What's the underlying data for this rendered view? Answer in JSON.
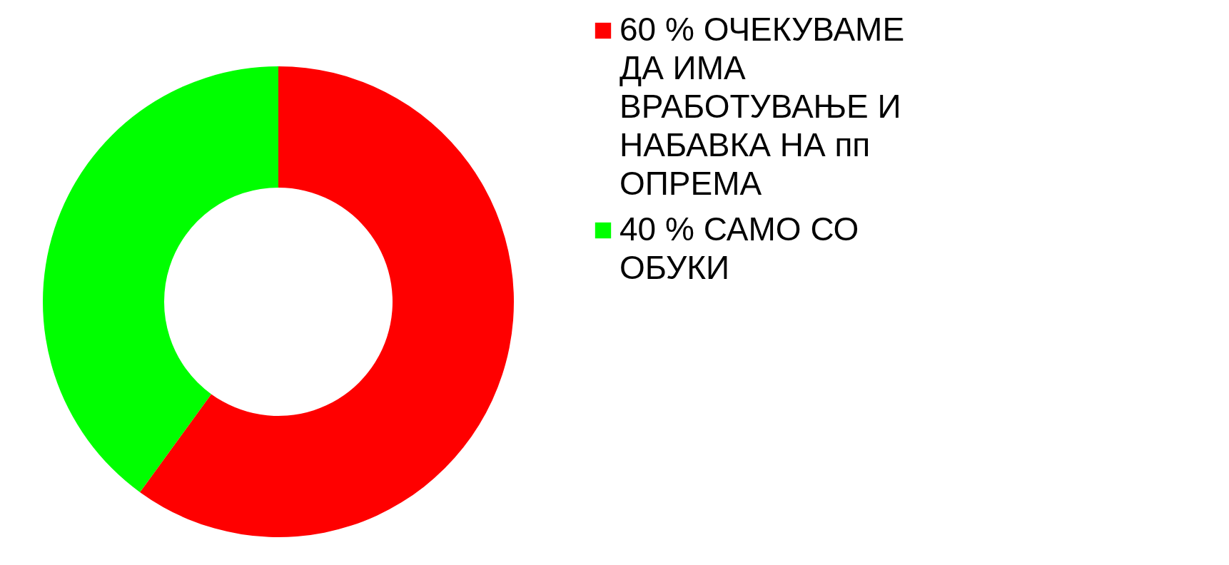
{
  "chart_data": {
    "type": "donut",
    "categories": [
      "60 % ОЧЕКУВАМЕ ДА ИМА ВРАБОТУВАЊЕ И НАБАВКА НА пп ОПРЕМА",
      "40 % САМО СО ОБУКИ"
    ],
    "values": [
      60,
      40
    ],
    "colors": [
      "#ff0000",
      "#00ff00"
    ],
    "legend": "right"
  }
}
